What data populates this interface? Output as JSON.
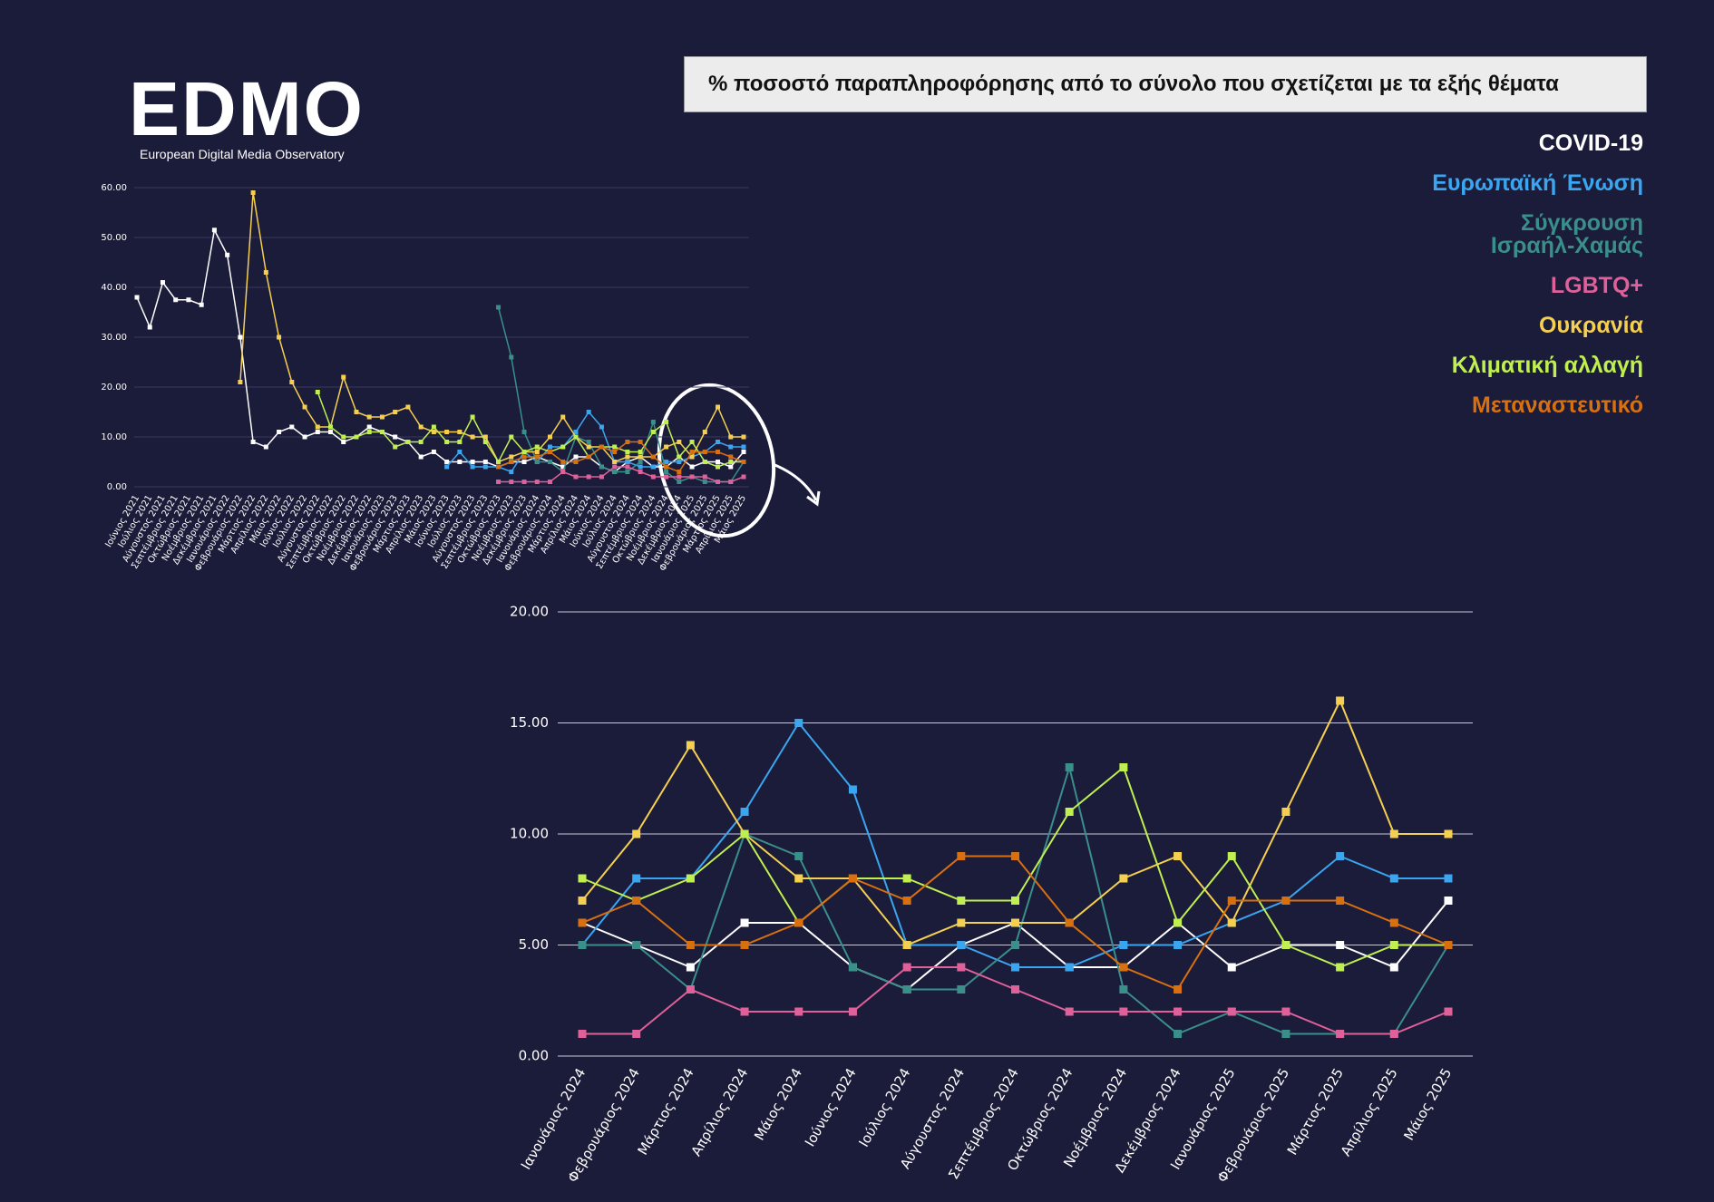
{
  "header": {
    "logo": "EDMO",
    "logo_subtitle": "European Digital Media Observatory"
  },
  "title": "% ποσοστό παραπληροφόρησης από το σύνολο που σχετίζεται με τα εξής θέματα",
  "chart_data": [
    {
      "type": "line",
      "categories": [
        "Ιούνιος 2021",
        "Ιούλιος 2021",
        "Αύγουστος 2021",
        "Σεπτέμβριος 2021",
        "Οκτώβριος 2021",
        "Νοέμβριος 2021",
        "Δεκέμβριος 2021",
        "Ιανουάριος 2022",
        "Φεβρουάριος 2022",
        "Μάρτιος 2022",
        "Απρίλιος 2022",
        "Μάιος 2022",
        "Ιούνιος 2022",
        "Ιούλιος 2022",
        "Αύγουστος 2022",
        "Σεπτέμβριος 2022",
        "Οκτώβριος 2022",
        "Νοέμβριος 2022",
        "Δεκέμβριος 2022",
        "Ιανουάριος 2023",
        "Φεβρουάριος 2023",
        "Μάρτιος 2023",
        "Απρίλιος 2023",
        "Μάιος 2023",
        "Ιούνιος 2023",
        "Ιούλιος 2023",
        "Αύγουστος 2023",
        "Σεπτέμβριος 2023",
        "Οκτώβριος 2023",
        "Νοέμβριος 2023",
        "Δεκέμβριος 2023",
        "Ιανουάριος 2024",
        "Φεβρουάριος 2024",
        "Μάρτιος 2024",
        "Απρίλιος 2024",
        "Μάιος 2024",
        "Ιούνιος 2024",
        "Ιούλιος 2024",
        "Αύγουστος 2024",
        "Σεπτέμβριος 2024",
        "Οκτώβριος 2024",
        "Νοέμβριος 2024",
        "Δεκέμβριος 2024",
        "Ιανουάριος 2025",
        "Φεβρουάριος 2025",
        "Μάρτιος 2025",
        "Απρίλιος 2025",
        "Μάιος 2025"
      ],
      "series": [
        {
          "name": "COVID-19",
          "color": "#ffffff",
          "values": [
            38,
            32,
            41,
            37.5,
            37.5,
            36.5,
            51.5,
            46.5,
            30,
            9,
            8,
            11,
            12,
            10,
            11,
            11,
            9,
            10,
            12,
            11,
            10,
            9,
            6,
            7,
            5,
            5,
            5,
            5,
            4,
            5,
            5,
            6,
            5,
            4,
            6,
            6,
            4,
            3,
            5,
            6,
            4,
            4,
            6,
            4,
            5,
            5,
            4,
            7
          ]
        },
        {
          "name": "Ευρωπαϊκή Ένωση",
          "color": "#3aa6f0",
          "values": [
            null,
            null,
            null,
            null,
            null,
            null,
            null,
            null,
            null,
            null,
            null,
            null,
            null,
            null,
            null,
            null,
            null,
            null,
            null,
            null,
            null,
            null,
            null,
            null,
            4,
            7,
            4,
            4,
            4,
            3,
            7,
            5,
            8,
            8,
            11,
            15,
            12,
            5,
            5,
            4,
            4,
            5,
            5,
            6,
            7,
            9,
            8,
            8
          ]
        },
        {
          "name": "Σύγκρουση Ισραήλ-Χαμάς",
          "color": "#3a8f8a",
          "values": [
            null,
            null,
            null,
            null,
            null,
            null,
            null,
            null,
            null,
            null,
            null,
            null,
            null,
            null,
            null,
            null,
            null,
            null,
            null,
            null,
            null,
            null,
            null,
            null,
            null,
            null,
            null,
            null,
            36,
            26,
            11,
            5,
            5,
            3,
            10,
            9,
            4,
            3,
            3,
            5,
            13,
            3,
            1,
            2,
            1,
            1,
            1,
            5
          ]
        },
        {
          "name": "LGBTQ+",
          "color": "#e0609a",
          "values": [
            null,
            null,
            null,
            null,
            null,
            null,
            null,
            null,
            null,
            null,
            null,
            null,
            null,
            null,
            null,
            null,
            null,
            null,
            null,
            null,
            null,
            null,
            null,
            null,
            null,
            null,
            null,
            null,
            1,
            1,
            1,
            1,
            1,
            3,
            2,
            2,
            2,
            4,
            4,
            3,
            2,
            2,
            2,
            2,
            2,
            1,
            1,
            2
          ]
        },
        {
          "name": "Ουκρανία",
          "color": "#f5d050",
          "values": [
            null,
            null,
            null,
            null,
            null,
            null,
            null,
            null,
            21,
            59,
            43,
            30,
            21,
            16,
            12,
            12,
            22,
            15,
            14,
            14,
            15,
            16,
            12,
            11,
            11,
            11,
            10,
            10,
            5,
            6,
            7,
            7,
            10,
            14,
            10,
            8,
            8,
            5,
            6,
            6,
            6,
            8,
            9,
            6,
            11,
            16,
            10,
            10
          ]
        },
        {
          "name": "Κλιματική αλλαγή",
          "color": "#c0f050",
          "values": [
            null,
            null,
            null,
            null,
            null,
            null,
            null,
            null,
            null,
            null,
            null,
            null,
            null,
            null,
            19,
            12,
            10,
            10,
            11,
            11,
            8,
            9,
            9,
            12,
            9,
            9,
            14,
            9,
            5,
            10,
            7,
            8,
            7,
            8,
            10,
            6,
            8,
            8,
            7,
            7,
            11,
            13,
            6,
            9,
            5,
            4,
            5,
            5
          ]
        },
        {
          "name": "Μεταναστευτικό",
          "color": "#d87010",
          "values": [
            null,
            null,
            null,
            null,
            null,
            null,
            null,
            null,
            null,
            null,
            null,
            null,
            null,
            null,
            null,
            null,
            null,
            null,
            null,
            null,
            null,
            null,
            null,
            null,
            null,
            null,
            null,
            null,
            4,
            5,
            6,
            6,
            7,
            5,
            5,
            6,
            8,
            7,
            9,
            9,
            6,
            4,
            3,
            7,
            7,
            7,
            6,
            5
          ]
        }
      ],
      "ylim": [
        0,
        60
      ],
      "yticks": [
        {
          "value": 0,
          "label": "0.00"
        },
        {
          "value": 10,
          "label": "10.00"
        },
        {
          "value": 20,
          "label": "20.00"
        },
        {
          "value": 30,
          "label": "30.00"
        },
        {
          "value": 40,
          "label": "40.00"
        },
        {
          "value": 50,
          "label": "50.00"
        },
        {
          "value": 60,
          "label": "60.00"
        }
      ],
      "grid": true
    },
    {
      "type": "line",
      "categories": [
        "Ιανουάριος 2024",
        "Φεβρουάριος 2024",
        "Μάρτιος 2024",
        "Απρίλιος 2024",
        "Μάιος 2024",
        "Ιούνιος 2024",
        "Ιούλιος 2024",
        "Αύγουστος 2024",
        "Σεπτέμβριος 2024",
        "Οκτώβριος 2024",
        "Νοέμβριος 2024",
        "Δεκέμβριος 2024",
        "Ιανουάριος 2025",
        "Φεβρουάριος 2025",
        "Μάρτιος 2025",
        "Απρίλιος 2025",
        "Μάιος 2025"
      ],
      "series": [
        {
          "name": "COVID-19",
          "color": "#ffffff",
          "values": [
            6,
            5,
            4,
            6,
            6,
            4,
            3,
            5,
            6,
            4,
            4,
            6,
            4,
            5,
            5,
            4,
            7
          ]
        },
        {
          "name": "Ευρωπαϊκή Ένωση",
          "color": "#3aa6f0",
          "values": [
            5,
            8,
            8,
            11,
            15,
            12,
            5,
            5,
            4,
            4,
            5,
            5,
            6,
            7,
            9,
            8,
            8
          ]
        },
        {
          "name": "Σύγκρουση Ισραήλ-Χαμάς",
          "color": "#3a8f8a",
          "values": [
            5,
            5,
            3,
            10,
            9,
            4,
            3,
            3,
            5,
            13,
            3,
            1,
            2,
            1,
            1,
            1,
            5
          ]
        },
        {
          "name": "LGBTQ+",
          "color": "#e0609a",
          "values": [
            1,
            1,
            3,
            2,
            2,
            2,
            4,
            4,
            3,
            2,
            2,
            2,
            2,
            2,
            1,
            1,
            2
          ]
        },
        {
          "name": "Ουκρανία",
          "color": "#f5d050",
          "values": [
            7,
            10,
            14,
            10,
            8,
            8,
            5,
            6,
            6,
            6,
            8,
            9,
            6,
            11,
            16,
            10,
            10
          ]
        },
        {
          "name": "Κλιματική αλλαγή",
          "color": "#c0f050",
          "values": [
            8,
            7,
            8,
            10,
            6,
            8,
            8,
            7,
            7,
            11,
            13,
            6,
            9,
            5,
            4,
            5,
            5
          ]
        },
        {
          "name": "Μεταναστευτικό",
          "color": "#d87010",
          "values": [
            6,
            7,
            5,
            5,
            6,
            8,
            7,
            9,
            9,
            6,
            4,
            3,
            7,
            7,
            7,
            6,
            5
          ]
        }
      ],
      "ylim": [
        0,
        20
      ],
      "yticks": [
        {
          "value": 0,
          "label": "0.00"
        },
        {
          "value": 5,
          "label": "5.00"
        },
        {
          "value": 10,
          "label": "10.00"
        },
        {
          "value": 15,
          "label": "15.00"
        },
        {
          "value": 20,
          "label": "20.00"
        }
      ],
      "grid": true
    }
  ]
}
